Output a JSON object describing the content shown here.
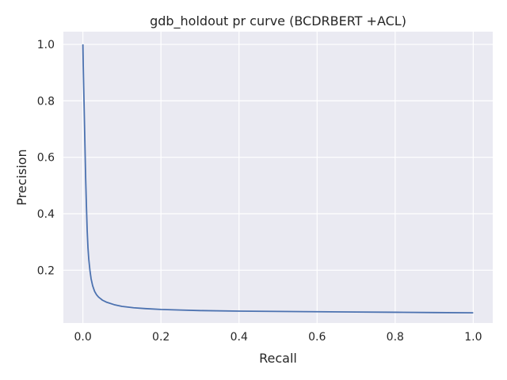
{
  "chart_data": {
    "type": "line",
    "title": "gdb_holdout pr curve (BCDRBERT +ACL)",
    "xlabel": "Recall",
    "ylabel": "Precision",
    "xlim": [
      -0.05,
      1.05
    ],
    "ylim": [
      0.013,
      1.045
    ],
    "grid": true,
    "x_ticks": [
      0.0,
      0.2,
      0.4,
      0.6,
      0.8,
      1.0
    ],
    "x_tick_labels": [
      "0.0",
      "0.2",
      "0.4",
      "0.6",
      "0.8",
      "1.0"
    ],
    "y_ticks": [
      0.2,
      0.4,
      0.6,
      0.8,
      1.0
    ],
    "y_tick_labels": [
      "0.2",
      "0.4",
      "0.6",
      "0.8",
      "1.0"
    ],
    "colors": {
      "background": "#eaeaf2",
      "grid": "#ffffff",
      "line": "#4c72b0"
    },
    "series": [
      {
        "x": [
          0.0,
          0.001,
          0.003,
          0.005,
          0.007,
          0.009,
          0.011,
          0.013,
          0.015,
          0.018,
          0.021,
          0.025,
          0.03,
          0.035,
          0.04,
          0.05,
          0.06,
          0.08,
          0.1,
          0.13,
          0.16,
          0.2,
          0.25,
          0.3,
          0.4,
          0.5,
          0.6,
          0.7,
          0.8,
          0.9,
          1.0
        ],
        "y": [
          1.0,
          0.92,
          0.79,
          0.66,
          0.53,
          0.43,
          0.34,
          0.28,
          0.24,
          0.2,
          0.17,
          0.145,
          0.125,
          0.113,
          0.105,
          0.094,
          0.087,
          0.078,
          0.072,
          0.067,
          0.064,
          0.061,
          0.059,
          0.057,
          0.055,
          0.054,
          0.053,
          0.052,
          0.051,
          0.05,
          0.049
        ]
      }
    ]
  }
}
